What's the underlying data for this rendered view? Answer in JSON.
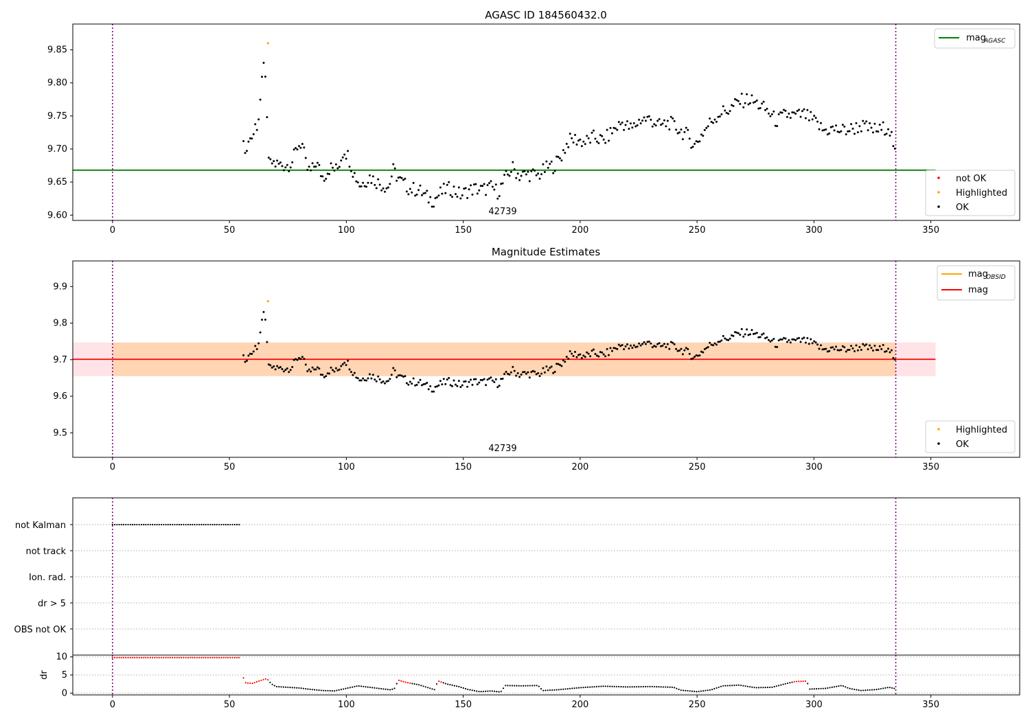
{
  "chart_data": [
    {
      "type": "scatter",
      "title": "AGASC ID 184560432.0",
      "xlim": [
        -17,
        388
      ],
      "ylim": [
        9.592,
        9.889
      ],
      "yticks": [
        9.6,
        9.65,
        9.7,
        9.75,
        9.8,
        9.85
      ],
      "xticks": [
        0,
        50,
        100,
        150,
        200,
        250,
        300,
        350
      ],
      "obsid_label": "42739",
      "obsid_label_x": 167,
      "vlines_x": [
        0,
        335
      ],
      "mag_agasc": 9.668,
      "legend_lines": [
        {
          "label": "mag",
          "sub": "AGASC",
          "color": "#008000"
        }
      ],
      "legend_points": [
        {
          "label": "not OK",
          "color": "#ff0000"
        },
        {
          "label": "Highlighted",
          "color": "#ffa500"
        },
        {
          "label": "OK",
          "color": "#000000"
        }
      ],
      "series": [
        {
          "name": "OK",
          "color": "#000000"
        },
        {
          "name": "Highlighted",
          "color": "#ffa500",
          "points": [
            [
              66.5,
              9.86
            ]
          ]
        }
      ]
    },
    {
      "type": "scatter",
      "title": "Magnitude Estimates",
      "xlim": [
        -17,
        388
      ],
      "ylim": [
        9.433,
        9.97
      ],
      "yticks": [
        9.5,
        9.6,
        9.7,
        9.8,
        9.9
      ],
      "xticks": [
        0,
        50,
        100,
        150,
        200,
        250,
        300,
        350
      ],
      "obsid_label": "42739",
      "obsid_label_x": 167,
      "vlines_x": [
        0,
        335
      ],
      "mag": 9.701,
      "mag_band": [
        9.655,
        9.747
      ],
      "mag_obsid_band": [
        9.655,
        9.747
      ],
      "legend_lines": [
        {
          "label": "mag",
          "sub": "OBSID",
          "color": "#ffa500"
        },
        {
          "label": "mag",
          "sub": "",
          "color": "#ff0000"
        }
      ],
      "legend_points": [
        {
          "label": "Highlighted",
          "color": "#ffa500"
        },
        {
          "label": "OK",
          "color": "#000000"
        }
      ],
      "series": [
        {
          "name": "OK",
          "color": "#000000"
        },
        {
          "name": "Highlighted",
          "color": "#ffa500",
          "points": [
            [
              66.5,
              9.86
            ]
          ]
        }
      ]
    },
    {
      "type": "scatter",
      "title": "",
      "xlim": [
        -17,
        388
      ],
      "flag_labels": [
        "not Kalman",
        "not track",
        "Ion. rad.",
        "dr > 5",
        "OBS not OK"
      ],
      "flag_not_kalman_x": [
        0,
        55
      ],
      "vlines_x": [
        0,
        335
      ]
    },
    {
      "type": "scatter",
      "title": "",
      "xlim": [
        -17,
        388
      ],
      "ylim": [
        -0.5,
        10.5
      ],
      "yticks": [
        0,
        5,
        10
      ],
      "xticks": [
        0,
        50,
        100,
        150,
        200,
        250,
        300,
        350
      ],
      "ylabel": "dr",
      "vlines_x": [
        0,
        335
      ],
      "dr_value_before_start": 9.8
    }
  ],
  "colors": {
    "ok": "#000000",
    "not_ok": "#ff0000",
    "highlighted": "#ffa500",
    "agasc_line": "#008000",
    "mag_line": "#ff0000",
    "vline": "#800080"
  }
}
